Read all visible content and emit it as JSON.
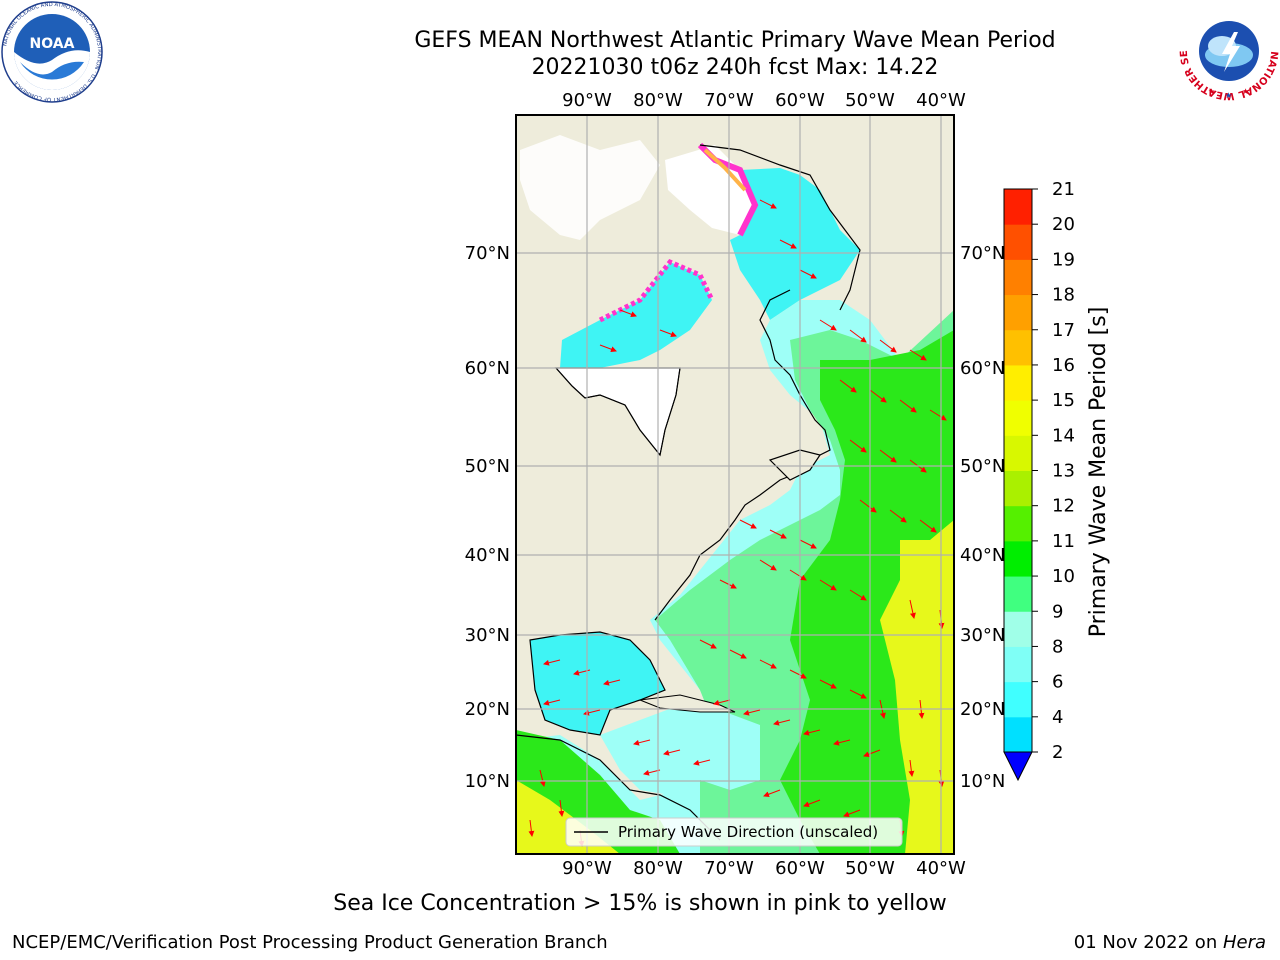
{
  "header": {
    "title_line1": "GEFS MEAN Northwest Atlantic Primary Wave Mean Period",
    "title_line2": "20221030 t06z 240h fcst   Max: 14.22"
  },
  "logos": {
    "noaa_text": "NOAA",
    "noaa_ring_text": "NATIONAL OCEANIC AND ATMOSPHERIC ADMINISTRATION · U.S. DEPARTMENT OF COMMERCE",
    "nws_ring_text": "NATIONAL WEATHER SERVICE"
  },
  "map": {
    "lon_labels": [
      "90°W",
      "80°W",
      "70°W",
      "60°W",
      "50°W",
      "40°W"
    ],
    "lat_labels": [
      "70°N",
      "60°N",
      "50°N",
      "40°N",
      "30°N",
      "20°N",
      "10°N"
    ],
    "legend_label": "Primary Wave Direction (unscaled)",
    "colors": {
      "land": "#eeecdb",
      "ocean_light": "#9efff7",
      "ocean_cyan": "#3ff4f4",
      "ocean_green": "#6df59a",
      "ocean_green2": "#2be81a",
      "ocean_yellow": "#e7f81b",
      "arrow": "#ff0000",
      "ice_pink": "#ff33cc",
      "ice_orange": "#ffb347",
      "grid": "#b0b0b0"
    }
  },
  "colorbar": {
    "label": "Primary Wave Mean Period [s]",
    "ticks": [
      "2",
      "4",
      "6",
      "8",
      "9",
      "10",
      "11",
      "12",
      "13",
      "14",
      "15",
      "16",
      "17",
      "18",
      "19",
      "20",
      "21"
    ],
    "colors": [
      "#0060ff",
      "#00e0ff",
      "#40ffff",
      "#7ffff6",
      "#a0ffe8",
      "#40ff80",
      "#00ee00",
      "#55f000",
      "#aaf000",
      "#d8f800",
      "#f0ff00",
      "#ffee00",
      "#ffc000",
      "#ffa000",
      "#ff8000",
      "#ff5000",
      "#ff2000",
      "#ff0000"
    ],
    "extend_color": "#0000ff"
  },
  "caption": "Sea Ice Concentration > 15% is shown in pink to yellow",
  "footer": {
    "left": "NCEP/EMC/Verification Post Processing Product Generation Branch",
    "right_date": "01 Nov 2022 on ",
    "right_host": "Hera"
  }
}
